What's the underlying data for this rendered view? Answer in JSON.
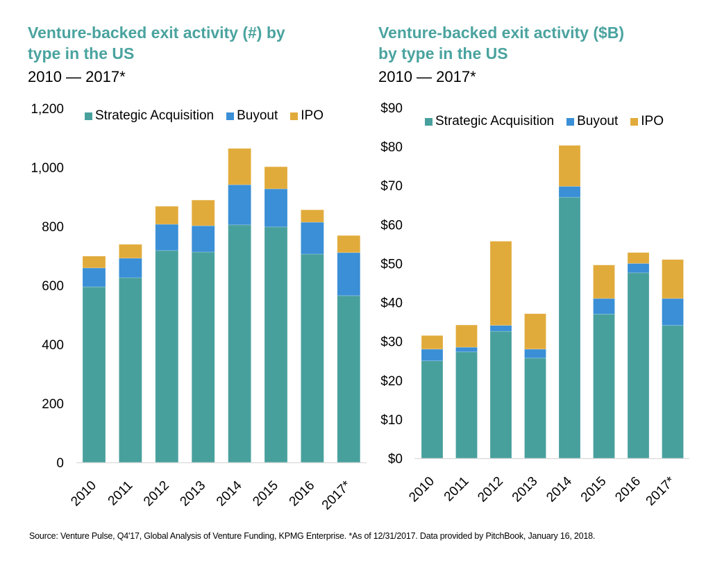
{
  "chart_data": [
    {
      "type": "bar",
      "stacked": true,
      "title": "Venture-backed exit activity (#) by type in the US",
      "title_lines": [
        "Venture-backed exit activity (#) by",
        "type in the US"
      ],
      "subtitle": "2010 — 2017*",
      "xlabel": "",
      "ylabel": "",
      "categories": [
        "2010",
        "2011",
        "2012",
        "2013",
        "2014",
        "2015",
        "2016",
        "2017*"
      ],
      "ylim": [
        0,
        1200
      ],
      "yticks": [
        0,
        200,
        400,
        600,
        800,
        1000,
        1200
      ],
      "ytick_labels": [
        "0",
        "200",
        "400",
        "600",
        "800",
        "1,000",
        "1,200"
      ],
      "grid": false,
      "legend_position": "top",
      "series": [
        {
          "name": "Strategic Acquisition",
          "color": "#48a09d",
          "values": [
            595,
            626,
            718,
            713,
            805,
            798,
            706,
            565
          ]
        },
        {
          "name": "Buyout",
          "color": "#3a8fd6",
          "values": [
            64,
            66,
            89,
            89,
            136,
            129,
            108,
            146
          ]
        },
        {
          "name": "IPO",
          "color": "#e1ab3b",
          "values": [
            40,
            47,
            61,
            87,
            123,
            75,
            42,
            58
          ]
        }
      ]
    },
    {
      "type": "bar",
      "stacked": true,
      "title": "Venture-backed exit activity ($B) by type in the US",
      "title_lines": [
        "Venture-backed exit activity ($B)",
        "by type in the US"
      ],
      "subtitle": "2010 — 2017*",
      "xlabel": "",
      "ylabel": "",
      "categories": [
        "2010",
        "2011",
        "2012",
        "2013",
        "2014",
        "2015",
        "2016",
        "2017*"
      ],
      "ylim": [
        0,
        90
      ],
      "yticks": [
        0,
        10,
        20,
        30,
        40,
        50,
        60,
        70,
        80,
        90
      ],
      "ytick_labels": [
        "$0",
        "$10",
        "$20",
        "$30",
        "$40",
        "$50",
        "$60",
        "$70",
        "$80",
        "$90"
      ],
      "grid": false,
      "legend_position": "top",
      "series": [
        {
          "name": "Strategic Acquisition",
          "color": "#48a09d",
          "values": [
            25.0,
            27.3,
            32.6,
            25.7,
            67.0,
            37.0,
            47.6,
            34.1
          ]
        },
        {
          "name": "Buyout",
          "color": "#3a8fd6",
          "values": [
            3.0,
            1.2,
            1.5,
            2.3,
            2.8,
            4.0,
            2.4,
            6.9
          ]
        },
        {
          "name": "IPO",
          "color": "#e1ab3b",
          "values": [
            3.5,
            5.7,
            21.6,
            9.1,
            10.5,
            8.6,
            2.8,
            10.0
          ]
        }
      ]
    }
  ],
  "footer": {
    "source": "Source: Venture Pulse, Q4'17, Global Analysis of Venture Funding, KPMG Enterprise. *As of 12/31/2017. Data provided by PitchBook, January 16, 2018."
  }
}
